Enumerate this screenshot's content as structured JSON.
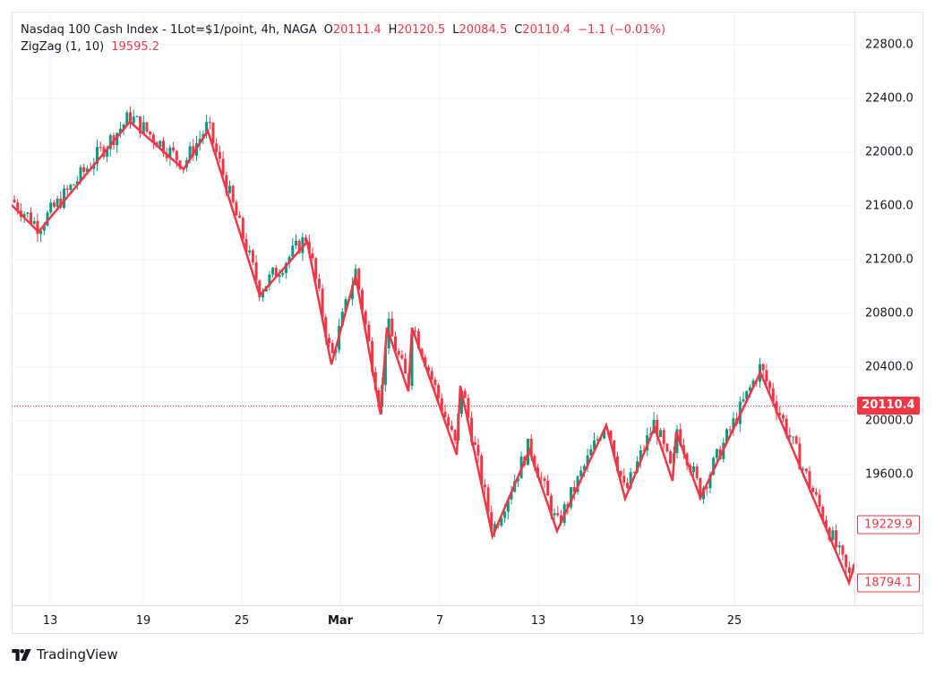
{
  "legend": {
    "symbol": "Nasdaq 100 Cash Index - 1Lot=$1/point, 4h, NAGA",
    "open_label": "O",
    "open": "20111.4",
    "high_label": "H",
    "high": "20120.5",
    "low_label": "L",
    "low": "20084.5",
    "close_label": "C",
    "close": "20110.4",
    "change": "−1.1 (−0.01%)",
    "indicator_name": "ZigZag (1, 10)",
    "indicator_value": "19595.2"
  },
  "price_axis": {
    "ticks": [
      "22800.0",
      "22400.0",
      "22000.0",
      "21600.0",
      "21200.0",
      "20800.0",
      "20400.0",
      "20000.0",
      "19600.0"
    ],
    "last_price": "20110.4",
    "zigzag_labels": [
      "19229.9",
      "18794.1"
    ]
  },
  "time_axis": {
    "ticks": [
      {
        "label": "13",
        "bold": false
      },
      {
        "label": "19",
        "bold": false
      },
      {
        "label": "25",
        "bold": false
      },
      {
        "label": "Mar",
        "bold": true
      },
      {
        "label": "7",
        "bold": false
      },
      {
        "label": "13",
        "bold": false
      },
      {
        "label": "19",
        "bold": false
      },
      {
        "label": "25",
        "bold": false
      }
    ]
  },
  "brand": {
    "name": "TradingView"
  },
  "colors": {
    "up": "#089981",
    "down": "#f23645",
    "zigzag": "#f23645",
    "grid": "#f0f3fa",
    "text": "#131722"
  },
  "chart_data": {
    "type": "candlestick",
    "title": "Nasdaq 100 Cash Index - 1Lot=$1/point, 4h, NAGA",
    "timeframe": "4h",
    "xlabel": "",
    "ylabel": "",
    "ylim": [
      18600,
      22900
    ],
    "y_ticks": [
      19600,
      20000,
      20400,
      20800,
      21200,
      21600,
      22000,
      22400,
      22800
    ],
    "x_ticks": [
      "13",
      "19",
      "25",
      "Mar",
      "7",
      "13",
      "19",
      "25"
    ],
    "grid": true,
    "last_bar": {
      "open": 20111.4,
      "high": 20120.5,
      "low": 20084.5,
      "close": 20110.4,
      "change": -1.1,
      "change_pct": -0.01
    },
    "last_price_line": 20110.4,
    "indicator": {
      "name": "ZigZag",
      "params": [
        1,
        10
      ],
      "value": 19595.2,
      "pivots": [
        {
          "x": 13,
          "price": 21607
        },
        {
          "x": 43,
          "price": 21407
        },
        {
          "x": 145,
          "price": 22227
        },
        {
          "x": 205,
          "price": 21873
        },
        {
          "x": 232,
          "price": 22160
        },
        {
          "x": 290,
          "price": 20933
        },
        {
          "x": 343,
          "price": 21333
        },
        {
          "x": 370,
          "price": 20420
        },
        {
          "x": 397,
          "price": 21080
        },
        {
          "x": 425,
          "price": 20047
        },
        {
          "x": 432,
          "price": 20693
        },
        {
          "x": 456,
          "price": 20220
        },
        {
          "x": 460,
          "price": 20693
        },
        {
          "x": 510,
          "price": 19747
        },
        {
          "x": 514,
          "price": 20260
        },
        {
          "x": 550,
          "price": 19140
        },
        {
          "x": 591,
          "price": 19780
        },
        {
          "x": 622,
          "price": 19180
        },
        {
          "x": 677,
          "price": 19967
        },
        {
          "x": 698,
          "price": 19420
        },
        {
          "x": 731,
          "price": 19953
        },
        {
          "x": 751,
          "price": 19553
        },
        {
          "x": 755,
          "price": 19920
        },
        {
          "x": 782,
          "price": 19427
        },
        {
          "x": 849,
          "price": 20360
        },
        {
          "x": 948,
          "price": 18794.1
        },
        {
          "x": 956,
          "price": 18967
        }
      ],
      "labels": [
        19229.9,
        18794.1
      ]
    }
  }
}
